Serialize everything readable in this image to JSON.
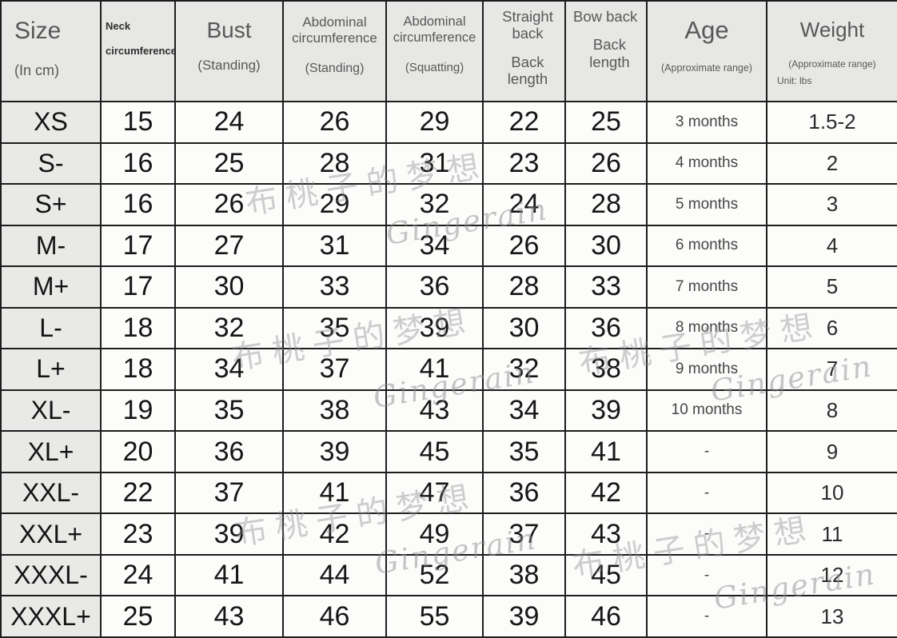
{
  "table": {
    "header": {
      "size": {
        "title": "Size",
        "sub": "(In cm)"
      },
      "neck": {
        "line1": "Neck",
        "line2": "circumference"
      },
      "bust": {
        "title": "Bust",
        "sub": "(Standing)"
      },
      "abdominal_standing": {
        "title": "Abdominal circumference",
        "sub": "(Standing)"
      },
      "abdominal_squatting": {
        "title": "Abdominal circumference",
        "sub": "(Squatting)"
      },
      "straight_back": {
        "line1": "Straight back",
        "line2": "Back length"
      },
      "bow_back": {
        "line1": "Bow back",
        "line2": "Back length"
      },
      "age": {
        "title": "Age",
        "sub": "(Approximate range)"
      },
      "weight": {
        "title": "Weight",
        "sub": "(Approximate range)",
        "unit": "Unit: lbs"
      }
    },
    "rows": [
      {
        "size": "XS",
        "neck": "15",
        "bust": "24",
        "abd_standing": "26",
        "abd_squatting": "29",
        "straight_back": "22",
        "bow_back": "25",
        "age": "3 months",
        "weight": "1.5-2"
      },
      {
        "size": "S-",
        "neck": "16",
        "bust": "25",
        "abd_standing": "28",
        "abd_squatting": "31",
        "straight_back": "23",
        "bow_back": "26",
        "age": "4 months",
        "weight": "2"
      },
      {
        "size": "S+",
        "neck": "16",
        "bust": "26",
        "abd_standing": "29",
        "abd_squatting": "32",
        "straight_back": "24",
        "bow_back": "28",
        "age": "5 months",
        "weight": "3"
      },
      {
        "size": "M-",
        "neck": "17",
        "bust": "27",
        "abd_standing": "31",
        "abd_squatting": "34",
        "straight_back": "26",
        "bow_back": "30",
        "age": "6 months",
        "weight": "4"
      },
      {
        "size": "M+",
        "neck": "17",
        "bust": "30",
        "abd_standing": "33",
        "abd_squatting": "36",
        "straight_back": "28",
        "bow_back": "33",
        "age": "7 months",
        "weight": "5"
      },
      {
        "size": "L-",
        "neck": "18",
        "bust": "32",
        "abd_standing": "35",
        "abd_squatting": "39",
        "straight_back": "30",
        "bow_back": "36",
        "age": "8 months",
        "weight": "6"
      },
      {
        "size": "L+",
        "neck": "18",
        "bust": "34",
        "abd_standing": "37",
        "abd_squatting": "41",
        "straight_back": "32",
        "bow_back": "38",
        "age": "9 months",
        "weight": "7"
      },
      {
        "size": "XL-",
        "neck": "19",
        "bust": "35",
        "abd_standing": "38",
        "abd_squatting": "43",
        "straight_back": "34",
        "bow_back": "39",
        "age": "10 months",
        "weight": "8"
      },
      {
        "size": "XL+",
        "neck": "20",
        "bust": "36",
        "abd_standing": "39",
        "abd_squatting": "45",
        "straight_back": "35",
        "bow_back": "41",
        "age": "-",
        "weight": "9"
      },
      {
        "size": "XXL-",
        "neck": "22",
        "bust": "37",
        "abd_standing": "41",
        "abd_squatting": "47",
        "straight_back": "36",
        "bow_back": "42",
        "age": "-",
        "weight": "10"
      },
      {
        "size": "XXL+",
        "neck": "23",
        "bust": "39",
        "abd_standing": "42",
        "abd_squatting": "49",
        "straight_back": "37",
        "bow_back": "43",
        "age": "-",
        "weight": "11"
      },
      {
        "size": "XXXL-",
        "neck": "24",
        "bust": "41",
        "abd_standing": "44",
        "abd_squatting": "52",
        "straight_back": "38",
        "bow_back": "45",
        "age": "-",
        "weight": "12"
      },
      {
        "size": "XXXL+",
        "neck": "25",
        "bust": "43",
        "abd_standing": "46",
        "abd_squatting": "55",
        "straight_back": "39",
        "bow_back": "46",
        "age": "-",
        "weight": "13"
      }
    ]
  },
  "watermark": {
    "cn": "布桃子的梦想",
    "latin": "Gingerain"
  },
  "colors": {
    "header_bg": "#e7e7e5",
    "size_column_bg": "#e9e9e7",
    "cell_bg": "#fcfcfb",
    "border": "#1d1d1d",
    "header_text": "#585858",
    "value_text": "#161616",
    "watermark": "#8e8e8e"
  }
}
